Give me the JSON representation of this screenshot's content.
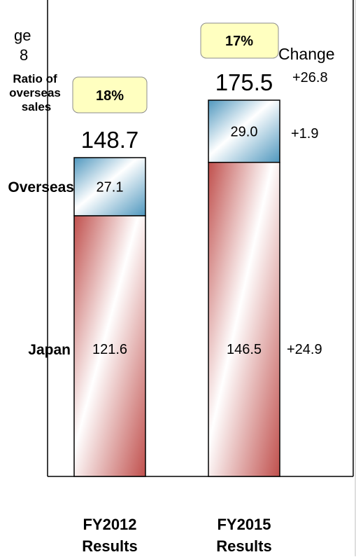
{
  "chart_data": {
    "type": "bar",
    "stacked": true,
    "categories": [
      "FY2012 Results",
      "FY2015 Results"
    ],
    "category_lines": [
      [
        "FY2012",
        "Results"
      ],
      [
        "FY2015",
        "Results"
      ]
    ],
    "series": [
      {
        "name": "Japan",
        "values": [
          121.6,
          146.5
        ],
        "labels": [
          "121.6",
          "146.5"
        ]
      },
      {
        "name": "Overseas",
        "values": [
          27.1,
          29.0
        ],
        "labels": [
          "27.1",
          "29.0"
        ]
      }
    ],
    "totals": [
      148.7,
      175.5
    ],
    "total_labels": [
      "148.7",
      "175.5"
    ],
    "overseas_ratio": [
      "18%",
      "17%"
    ],
    "ratio_label_lines": [
      "Ratio of",
      "overseas",
      "sales"
    ],
    "changes": {
      "total": "+26.8",
      "overseas": "+1.9",
      "japan": "+24.9"
    },
    "change_header": "Change",
    "left_cut_text": {
      "line1": "ge",
      "line2": "8"
    },
    "colors": {
      "japan": "#c0504d",
      "overseas": "#4f97be",
      "ratio_box": "#ffffc0"
    }
  }
}
